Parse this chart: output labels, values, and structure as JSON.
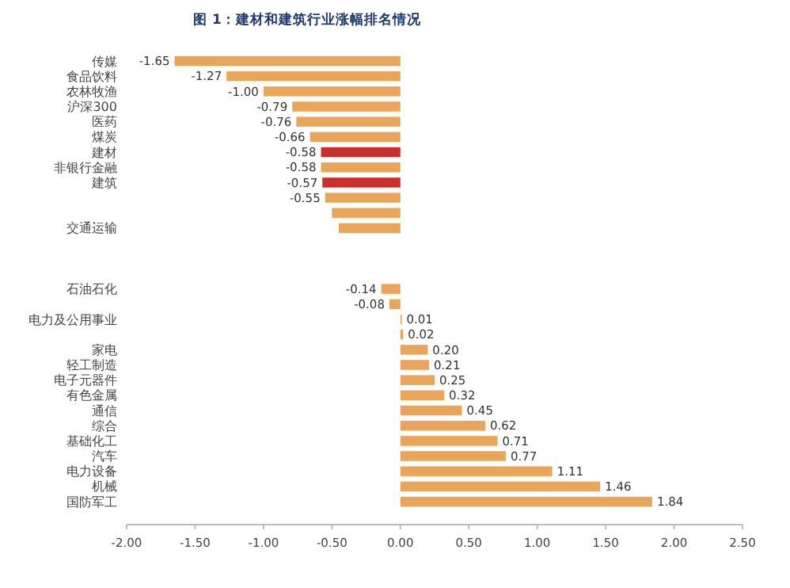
{
  "chart_data": {
    "type": "bar",
    "orientation": "horizontal",
    "title": "图 1：建材和建筑行业涨幅排名情况",
    "categories": [
      "传媒",
      "食品饮料",
      "农林牧渔",
      "沪深300",
      "医药",
      "煤炭",
      "建材",
      "非银行金融",
      "建筑",
      null,
      null,
      "交通运输",
      null,
      null,
      null,
      "石油石化",
      null,
      "电力及公用事业",
      null,
      "家电",
      "轻工制造",
      "电子元器件",
      "有色金属",
      "通信",
      "综合",
      "基础化工",
      "汽车",
      "电力设备",
      "机械",
      "国防军工"
    ],
    "values": [
      -1.65,
      -1.27,
      -1.0,
      -0.79,
      -0.76,
      -0.66,
      -0.58,
      -0.58,
      -0.57,
      -0.55,
      -0.5,
      -0.45,
      null,
      null,
      null,
      -0.14,
      -0.08,
      0.01,
      0.02,
      0.2,
      0.21,
      0.25,
      0.32,
      0.45,
      0.62,
      0.71,
      0.77,
      1.11,
      1.46,
      1.84
    ],
    "value_labels": [
      "-1.65",
      "-1.27",
      "-1.00",
      "-0.79",
      "-0.76",
      "-0.66",
      "-0.58",
      "-0.58",
      "-0.57",
      "-0.55",
      null,
      null,
      null,
      null,
      null,
      "-0.14",
      "-0.08",
      "0.01",
      "0.02",
      "0.20",
      "0.21",
      "0.25",
      "0.32",
      "0.45",
      "0.62",
      "0.71",
      "0.77",
      "1.11",
      "1.46",
      "1.84"
    ],
    "colors": [
      "#e9a65a",
      "#e9a65a",
      "#e9a65a",
      "#e9a65a",
      "#e9a65a",
      "#e9a65a",
      "#c9302c",
      "#e9a65a",
      "#c9302c",
      "#e9a65a",
      "#e9a65a",
      "#e9a65a",
      null,
      null,
      null,
      "#e9a65a",
      "#e9a65a",
      "#e9a65a",
      "#e9a65a",
      "#e9a65a",
      "#e9a65a",
      "#e9a65a",
      "#e9a65a",
      "#e9a65a",
      "#e9a65a",
      "#e9a65a",
      "#e9a65a",
      "#e9a65a",
      "#e9a65a",
      "#e9a65a"
    ],
    "xlim": [
      -2,
      2.5
    ],
    "xticks": [
      {
        "value": -2,
        "label": "-2.00"
      },
      {
        "value": -1.5,
        "label": "-1.50"
      },
      {
        "value": -1,
        "label": "-1.00"
      },
      {
        "value": -0.5,
        "label": "-0.50"
      },
      {
        "value": 0,
        "label": "0.00"
      },
      {
        "value": 0.5,
        "label": "0.50"
      },
      {
        "value": 1,
        "label": "1.00"
      },
      {
        "value": 1.5,
        "label": "1.50"
      },
      {
        "value": 2,
        "label": "2.00"
      },
      {
        "value": 2.5,
        "label": "2.50"
      }
    ],
    "grid": false
  }
}
